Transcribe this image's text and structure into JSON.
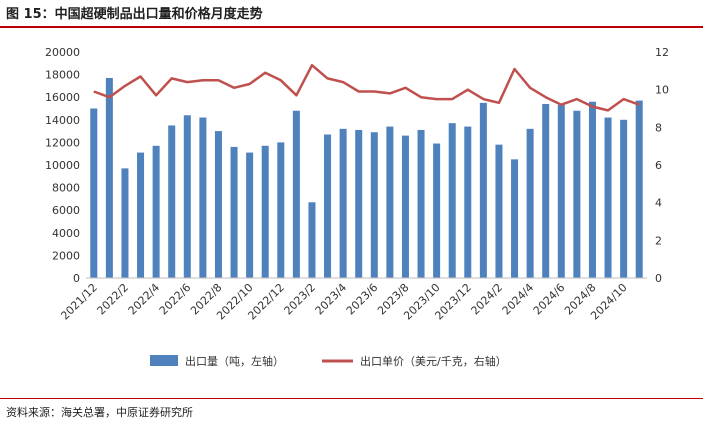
{
  "figure": {
    "title": "图 15：中国超硬制品出口量和价格月度走势",
    "source": "资料来源：海关总署，中原证券研究所"
  },
  "colors": {
    "bar": "#4f81bd",
    "line": "#c0504d",
    "accent_rule": "#c00000"
  },
  "chart_data": {
    "type": "bar",
    "x": [
      "2021/12",
      "2022/1",
      "2022/2",
      "2022/3",
      "2022/4",
      "2022/5",
      "2022/6",
      "2022/7",
      "2022/8",
      "2022/9",
      "2022/10",
      "2022/11",
      "2022/12",
      "2023/1",
      "2023/2",
      "2023/3",
      "2023/4",
      "2023/5",
      "2023/6",
      "2023/7",
      "2023/8",
      "2023/9",
      "2023/10",
      "2023/11",
      "2023/12",
      "2024/1",
      "2024/2",
      "2024/3",
      "2024/4",
      "2024/5",
      "2024/6",
      "2024/7",
      "2024/8",
      "2024/9",
      "2024/10",
      "2024/11"
    ],
    "x_tick_labels": [
      "2021/12",
      "2022/2",
      "2022/4",
      "2022/6",
      "2022/8",
      "2022/10",
      "2022/12",
      "2023/2",
      "2023/4",
      "2023/6",
      "2023/8",
      "2023/10",
      "2023/12",
      "2024/2",
      "2024/4",
      "2024/6",
      "2024/8",
      "2024/10"
    ],
    "series": [
      {
        "name": "出口量（吨，左轴）",
        "axis": "left",
        "type": "bar",
        "values": [
          15000,
          17700,
          9700,
          11100,
          11700,
          13500,
          14400,
          14200,
          13000,
          11600,
          11100,
          11700,
          12000,
          14800,
          6700,
          12700,
          13200,
          13100,
          12900,
          13400,
          12600,
          13100,
          11900,
          13700,
          13400,
          15500,
          11800,
          10500,
          13200,
          15400,
          15300,
          14800,
          15600,
          14200,
          14000,
          15700
        ]
      },
      {
        "name": "出口单价（美元/千克，右轴）",
        "axis": "right",
        "type": "line",
        "values": [
          9.9,
          9.6,
          10.2,
          10.7,
          9.7,
          10.6,
          10.4,
          10.5,
          10.5,
          10.1,
          10.3,
          10.9,
          10.5,
          9.7,
          11.3,
          10.6,
          10.4,
          9.9,
          9.9,
          9.8,
          10.1,
          9.6,
          9.5,
          9.5,
          10.0,
          9.5,
          9.3,
          11.1,
          10.1,
          9.6,
          9.2,
          9.5,
          9.1,
          8.9,
          9.5,
          9.2
        ]
      }
    ],
    "y_left": {
      "min": 0,
      "max": 20000,
      "step": 2000
    },
    "y_right": {
      "min": 0,
      "max": 12,
      "step": 2
    },
    "legend_position": "bottom"
  }
}
